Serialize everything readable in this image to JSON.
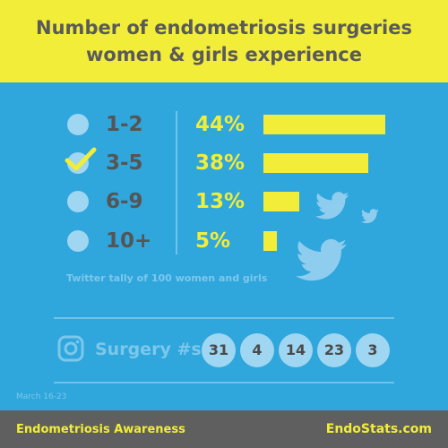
{
  "header": {
    "title_line1": "Number of endometriosis surgeries",
    "title_line2": "women & girls experience"
  },
  "chart_data": {
    "type": "bar",
    "orientation": "horizontal",
    "title": "Number of endometriosis surgeries women & girls experience",
    "categories": [
      "1-2",
      "3-5",
      "6-9",
      "10+"
    ],
    "values": [
      44,
      38,
      13,
      5
    ],
    "value_labels": [
      "44%",
      "38%",
      "13%",
      "5%"
    ],
    "unit": "%",
    "checked_category": "3-5",
    "annotation": "Twitter tally of 100 women and girls",
    "colors": {
      "bar": "#f2ed38",
      "background": "#2fa6dc",
      "text": "#555555"
    }
  },
  "instagram": {
    "label": "Surgery #s",
    "counts": [
      "31",
      "4",
      "14",
      "23",
      "3"
    ]
  },
  "date_range": "March 16-23",
  "footer": {
    "left": "Endometriosis Awareness",
    "right": "EndoStats.com"
  },
  "colors": {
    "yellow": "#f2ed38",
    "blue": "#2fa6dc",
    "light_blue": "#9fd6f1",
    "gray": "#5f5f5f"
  }
}
